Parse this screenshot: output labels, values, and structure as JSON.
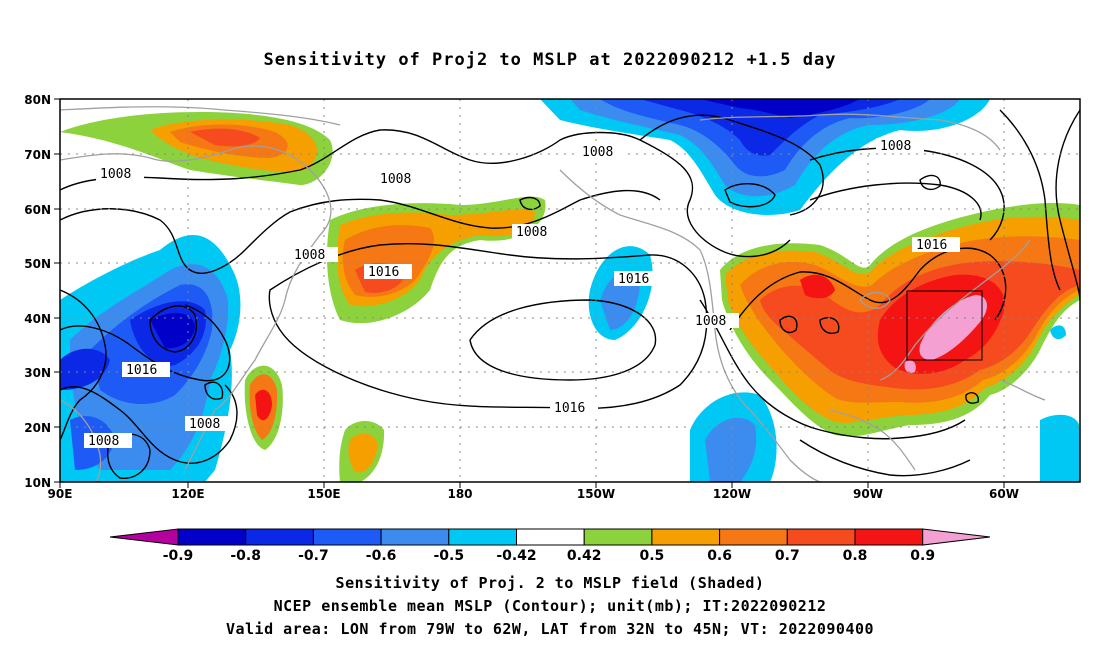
{
  "title": "Sensitivity of Proj2 to MSLP at 2022090212 +1.5 day",
  "map": {
    "lat_labels": [
      "80N",
      "70N",
      "60N",
      "50N",
      "40N",
      "30N",
      "20N",
      "10N"
    ],
    "lon_labels": [
      "90E",
      "120E",
      "150E",
      "180",
      "150W",
      "120W",
      "90W",
      "60W"
    ],
    "contour_labels": [
      "1008",
      "1008",
      "1008",
      "1008",
      "1008",
      "1008",
      "1008",
      "1016",
      "1016",
      "1016",
      "1016",
      "1016"
    ],
    "colors": {
      "neg_09": "#b4009e",
      "neg_08": "#0000c8",
      "neg_07": "#0a28e6",
      "neg_06": "#1e5af5",
      "neg_05": "#3c8cf0",
      "neg_042": "#00c8f5",
      "white": "#ffffff",
      "pos_042": "#8cd23c",
      "pos_05": "#f5a000",
      "pos_06": "#f57814",
      "pos_07": "#f54b1e",
      "pos_08": "#f51414",
      "pos_09": "#f5a0d2"
    }
  },
  "colorbar": {
    "ticks": [
      "-0.9",
      "-0.8",
      "-0.7",
      "-0.6",
      "-0.5",
      "-0.42",
      "0.42",
      "0.5",
      "0.6",
      "0.7",
      "0.8",
      "0.9"
    ]
  },
  "captions": {
    "line1": "Sensitivity of Proj. 2 to MSLP field (Shaded)",
    "line2": "NCEP ensemble mean MSLP (Contour); unit(mb); IT:2022090212",
    "line3": "Valid area: LON from 79W to 62W, LAT from 32N to 45N; VT: 2022090400"
  }
}
